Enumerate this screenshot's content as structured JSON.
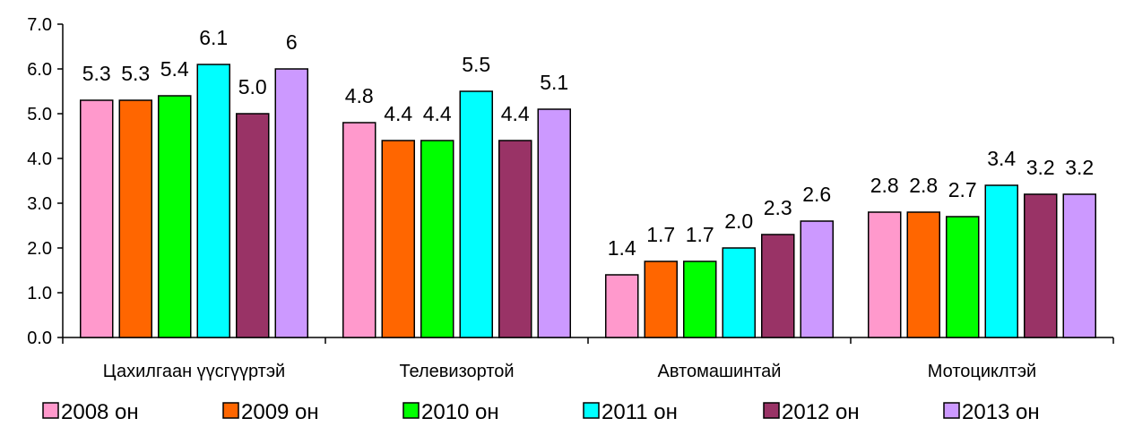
{
  "chart_data": {
    "type": "bar",
    "title": "",
    "xlabel": "",
    "ylabel": "",
    "categories": [
      "Цахилгаан үүсгүүртэй",
      "Телевизортой",
      "Автомашинтай",
      "Мотоциклтэй"
    ],
    "ylim": [
      0,
      7
    ],
    "y_ticks": [
      "0.0",
      "1.0",
      "2.0",
      "3.0",
      "4.0",
      "5.0",
      "6.0",
      "7.0"
    ],
    "grid": false,
    "legend_position": "bottom",
    "series": [
      {
        "name": "2008 он",
        "color": "#FF99CC",
        "values": [
          5.3,
          4.8,
          1.4,
          2.8
        ],
        "labels": [
          "5.3",
          "4.8",
          "1.4",
          "2.8"
        ]
      },
      {
        "name": "2009 он",
        "color": "#FF6600",
        "values": [
          5.3,
          4.4,
          1.7,
          2.8
        ],
        "labels": [
          "5.3",
          "4.4",
          "1.7",
          "2.8"
        ]
      },
      {
        "name": "2010 он",
        "color": "#00FF00",
        "values": [
          5.4,
          4.4,
          1.7,
          2.7
        ],
        "labels": [
          "5.4",
          "4.4",
          "1.7",
          "2.7"
        ]
      },
      {
        "name": "2011 он",
        "color": "#00FFFF",
        "values": [
          6.1,
          5.5,
          2.0,
          3.4
        ],
        "labels": [
          "6.1",
          "5.5",
          "2.0",
          "3.4"
        ]
      },
      {
        "name": "2012 он",
        "color": "#993366",
        "values": [
          5.0,
          4.4,
          2.3,
          3.2
        ],
        "labels": [
          "5.0",
          "4.4",
          "2.3",
          "3.2"
        ]
      },
      {
        "name": "2013 он",
        "color": "#CC99FF",
        "values": [
          6.0,
          5.1,
          2.6,
          3.2
        ],
        "labels": [
          "6",
          "5.1",
          "2.6",
          "3.2"
        ]
      }
    ]
  }
}
